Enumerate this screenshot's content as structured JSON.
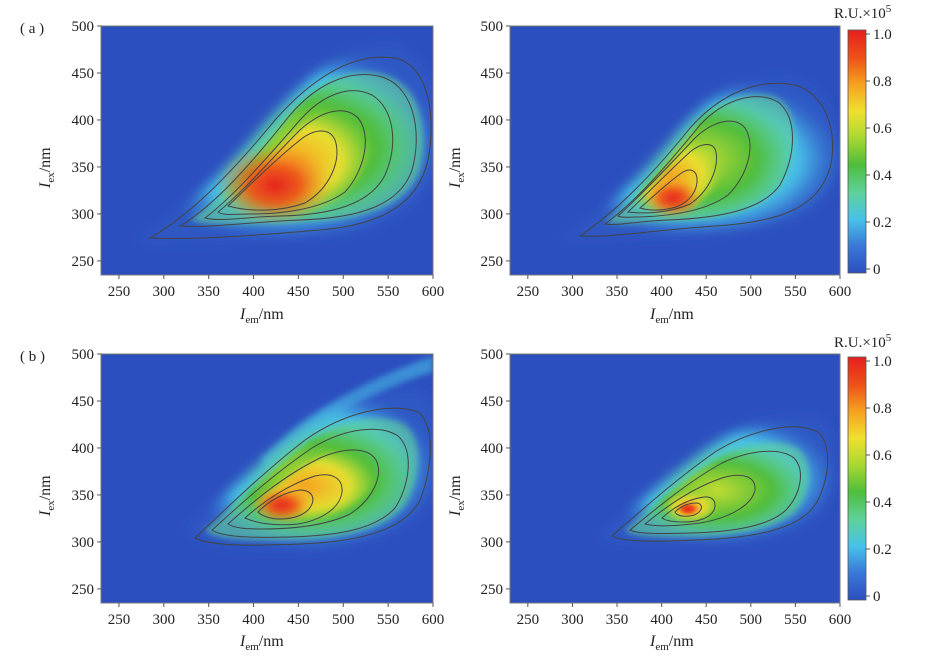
{
  "figure": {
    "panel_a_label": "( a )",
    "panel_b_label": "( b )"
  },
  "colorbar": {
    "unit_main": "R.U.×10",
    "unit_exp": "5",
    "ticks": [
      "1.0",
      "0.8",
      "0.6",
      "0.4",
      "0.2",
      "0"
    ],
    "stops": [
      "#2c4fbf",
      "#3a78d8",
      "#48c2e8",
      "#5fd19a",
      "#4fbd3c",
      "#a8d832",
      "#f0e030",
      "#f5a020",
      "#ee5018",
      "#e52020"
    ]
  },
  "chart_data": [
    {
      "type": "heatmap",
      "panel": "a-left",
      "title": "",
      "xlabel_main": "I",
      "xlabel_sub": "em",
      "xlabel_unit": "/nm",
      "ylabel_main": "I",
      "ylabel_sub": "ex",
      "ylabel_unit": "/nm",
      "xlim": [
        230,
        600
      ],
      "ylim": [
        235,
        500
      ],
      "x_ticks": [
        "250",
        "300",
        "350",
        "400",
        "450",
        "500",
        "550",
        "600"
      ],
      "y_ticks": [
        "250",
        "300",
        "350",
        "400",
        "450",
        "500"
      ],
      "peak": {
        "em": 425,
        "ex": 320,
        "intensity": 1.0
      },
      "contour_levels": [
        0.15,
        0.3,
        0.45,
        0.6,
        0.75,
        0.9
      ]
    },
    {
      "type": "heatmap",
      "panel": "a-right",
      "title": "",
      "xlabel_main": "I",
      "xlabel_sub": "em",
      "xlabel_unit": "/nm",
      "ylabel_main": "I",
      "ylabel_sub": "ex",
      "ylabel_unit": "/nm",
      "xlim": [
        230,
        600
      ],
      "ylim": [
        235,
        500
      ],
      "x_ticks": [
        "250",
        "300",
        "350",
        "400",
        "450",
        "500",
        "550",
        "600"
      ],
      "y_ticks": [
        "250",
        "300",
        "350",
        "400",
        "450",
        "500"
      ],
      "peak": {
        "em": 420,
        "ex": 318,
        "intensity": 1.0
      },
      "contour_levels": [
        0.15,
        0.3,
        0.45,
        0.6,
        0.75,
        0.9
      ]
    },
    {
      "type": "heatmap",
      "panel": "b-left",
      "title": "",
      "xlabel_main": "I",
      "xlabel_sub": "em",
      "xlabel_unit": "/nm",
      "ylabel_main": "I",
      "ylabel_sub": "ex",
      "ylabel_unit": "/nm",
      "xlim": [
        230,
        600
      ],
      "ylim": [
        235,
        500
      ],
      "x_ticks": [
        "250",
        "300",
        "350",
        "400",
        "450",
        "500",
        "550",
        "600"
      ],
      "y_ticks": [
        "250",
        "300",
        "350",
        "400",
        "450",
        "500"
      ],
      "peak": {
        "em": 430,
        "ex": 335,
        "intensity": 1.0
      },
      "contour_levels": [
        0.15,
        0.3,
        0.45,
        0.6,
        0.75,
        0.9
      ]
    },
    {
      "type": "heatmap",
      "panel": "b-right",
      "title": "",
      "xlabel_main": "I",
      "xlabel_sub": "em",
      "xlabel_unit": "/nm",
      "ylabel_main": "I",
      "ylabel_sub": "ex",
      "ylabel_unit": "/nm",
      "xlim": [
        230,
        600
      ],
      "ylim": [
        235,
        500
      ],
      "x_ticks": [
        "250",
        "300",
        "350",
        "400",
        "450",
        "500",
        "550",
        "600"
      ],
      "y_ticks": [
        "250",
        "300",
        "350",
        "400",
        "450",
        "500"
      ],
      "peak": {
        "em": 430,
        "ex": 335,
        "intensity": 1.0
      },
      "contour_levels": [
        0.15,
        0.3,
        0.45,
        0.6,
        0.75,
        0.9
      ]
    }
  ]
}
